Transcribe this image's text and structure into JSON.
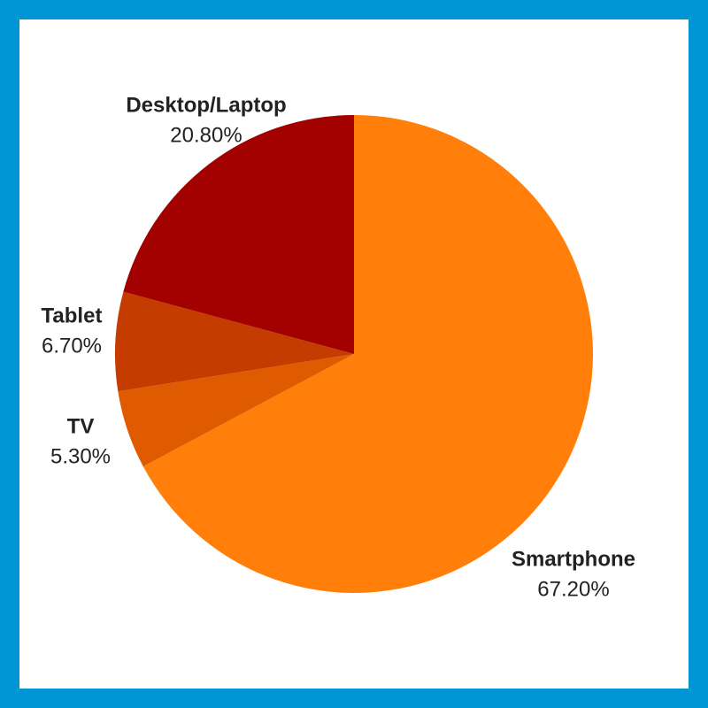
{
  "chart_data": {
    "type": "pie",
    "categories": [
      "Smartphone",
      "TV",
      "Tablet",
      "Desktop/Laptop"
    ],
    "values": [
      67.2,
      5.3,
      6.7,
      20.8
    ],
    "value_labels": [
      "67.20%",
      "5.30%",
      "6.70%",
      "20.80%"
    ],
    "colors": [
      "#ff7f0a",
      "#e05a00",
      "#c43c00",
      "#a30000"
    ]
  }
}
